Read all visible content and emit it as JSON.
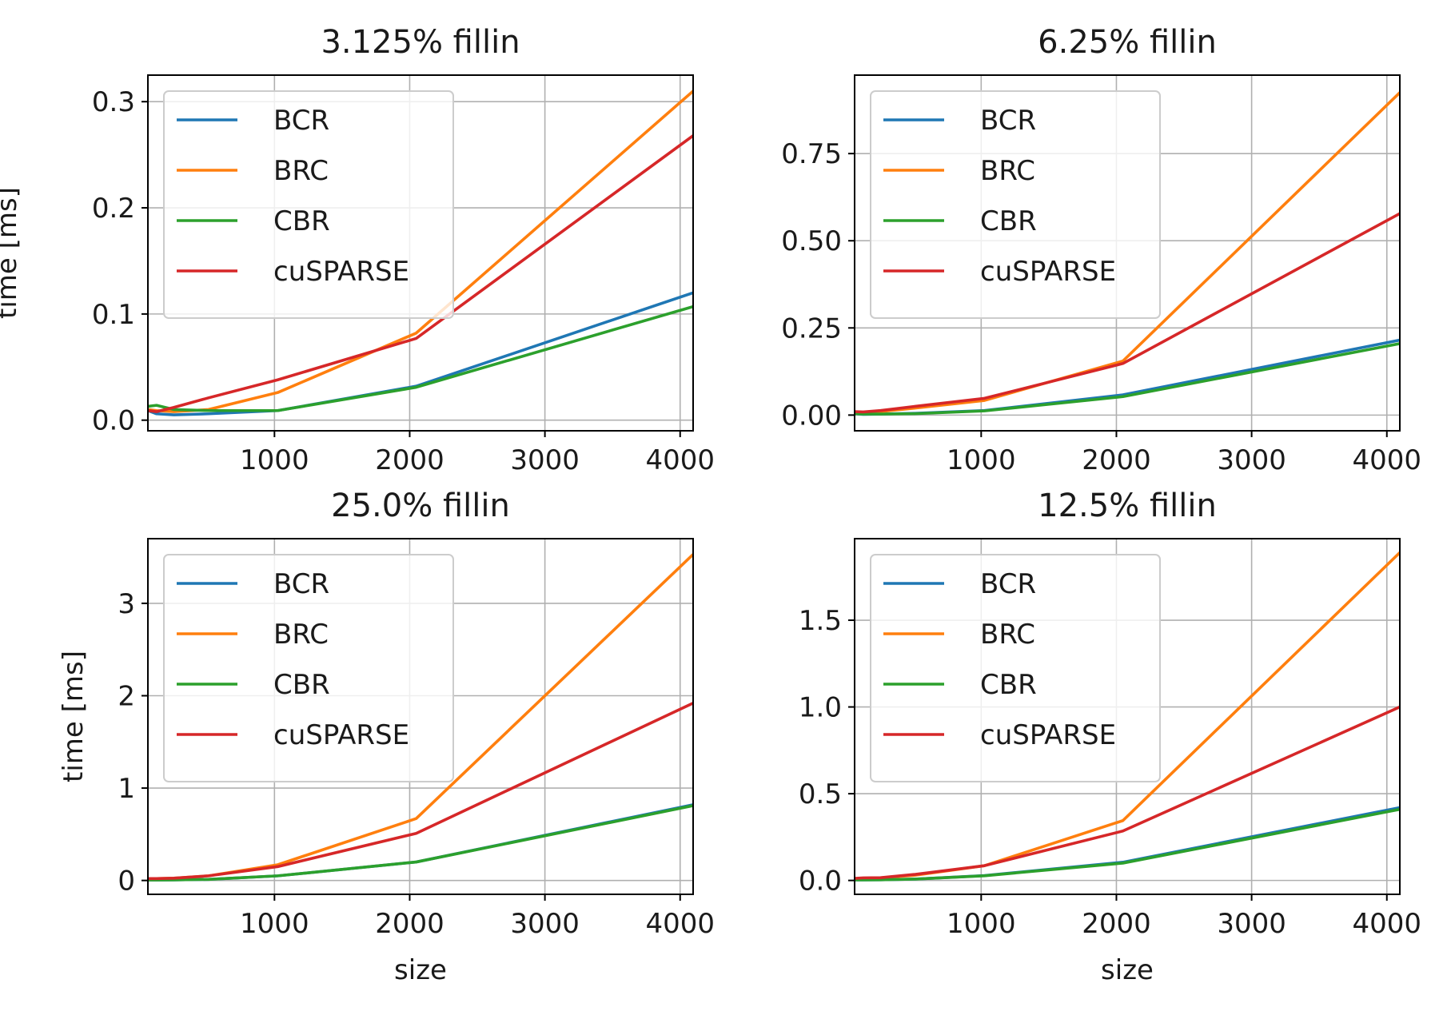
{
  "chart_data": [
    {
      "type": "line",
      "title": "3.125% fillin",
      "xlabel": "",
      "ylabel": "time [ms]",
      "xlim": [
        64,
        4096
      ],
      "ylim": [
        -0.01,
        0.325
      ],
      "xticks": [
        1000,
        2000,
        3000,
        4000
      ],
      "yticks": [
        0.0,
        0.1,
        0.2,
        0.3
      ],
      "ytick_labels": [
        "0.0",
        "0.1",
        "0.2",
        "0.3"
      ],
      "grid": true,
      "legend_position": "upper-left",
      "x": [
        64,
        128,
        256,
        512,
        1024,
        2048,
        4096
      ],
      "series": [
        {
          "name": "BCR",
          "color": "#1f77b4",
          "values": [
            0.009,
            0.006,
            0.005,
            0.006,
            0.009,
            0.032,
            0.12
          ]
        },
        {
          "name": "BRC",
          "color": "#ff7f0e",
          "values": [
            0.01,
            0.009,
            0.008,
            0.01,
            0.026,
            0.082,
            0.31
          ]
        },
        {
          "name": "CBR",
          "color": "#2ca02c",
          "values": [
            0.013,
            0.014,
            0.01,
            0.009,
            0.009,
            0.031,
            0.107
          ]
        },
        {
          "name": "cuSPARSE",
          "color": "#d62728",
          "values": [
            0.009,
            0.008,
            0.012,
            0.021,
            0.038,
            0.077,
            0.268
          ]
        }
      ]
    },
    {
      "type": "line",
      "title": "6.25% fillin",
      "xlabel": "",
      "ylabel": "",
      "xlim": [
        64,
        4096
      ],
      "ylim": [
        -0.045,
        0.975
      ],
      "xticks": [
        1000,
        2000,
        3000,
        4000
      ],
      "yticks": [
        0.0,
        0.25,
        0.5,
        0.75
      ],
      "ytick_labels": [
        "0.00",
        "0.25",
        "0.50",
        "0.75"
      ],
      "grid": true,
      "legend_position": "upper-left",
      "x": [
        64,
        128,
        256,
        512,
        1024,
        2048,
        4096
      ],
      "series": [
        {
          "name": "BCR",
          "color": "#1f77b4",
          "values": [
            0.004,
            0.002,
            0.003,
            0.005,
            0.013,
            0.058,
            0.215
          ]
        },
        {
          "name": "BRC",
          "color": "#ff7f0e",
          "values": [
            0.008,
            0.008,
            0.01,
            0.02,
            0.042,
            0.155,
            0.925
          ]
        },
        {
          "name": "CBR",
          "color": "#2ca02c",
          "values": [
            0.004,
            0.003,
            0.003,
            0.004,
            0.012,
            0.053,
            0.205
          ]
        },
        {
          "name": "cuSPARSE",
          "color": "#d62728",
          "values": [
            0.01,
            0.009,
            0.013,
            0.025,
            0.048,
            0.148,
            0.578
          ]
        }
      ]
    },
    {
      "type": "line",
      "title": "25.0% fillin",
      "xlabel": "size",
      "ylabel": "time [ms]",
      "xlim": [
        64,
        4096
      ],
      "ylim": [
        -0.15,
        3.7
      ],
      "xticks": [
        1000,
        2000,
        3000,
        4000
      ],
      "yticks": [
        0,
        1,
        2,
        3
      ],
      "ytick_labels": [
        "0",
        "1",
        "2",
        "3"
      ],
      "grid": true,
      "legend_position": "upper-left",
      "x": [
        64,
        128,
        256,
        512,
        1024,
        2048,
        4096
      ],
      "series": [
        {
          "name": "BCR",
          "color": "#1f77b4",
          "values": [
            0.005,
            0.005,
            0.006,
            0.012,
            0.05,
            0.2,
            0.82
          ]
        },
        {
          "name": "BRC",
          "color": "#ff7f0e",
          "values": [
            0.02,
            0.02,
            0.025,
            0.05,
            0.17,
            0.67,
            3.53
          ]
        },
        {
          "name": "CBR",
          "color": "#2ca02c",
          "values": [
            0.005,
            0.005,
            0.006,
            0.012,
            0.05,
            0.2,
            0.81
          ]
        },
        {
          "name": "cuSPARSE",
          "color": "#d62728",
          "values": [
            0.02,
            0.02,
            0.025,
            0.05,
            0.15,
            0.51,
            1.92
          ]
        }
      ]
    },
    {
      "type": "line",
      "title": "12.5% fillin",
      "xlabel": "size",
      "ylabel": "",
      "xlim": [
        64,
        4096
      ],
      "ylim": [
        -0.08,
        1.97
      ],
      "xticks": [
        1000,
        2000,
        3000,
        4000
      ],
      "yticks": [
        0.0,
        0.5,
        1.0,
        1.5
      ],
      "ytick_labels": [
        "0.0",
        "0.5",
        "1.0",
        "1.5"
      ],
      "grid": true,
      "legend_position": "upper-left",
      "x": [
        64,
        128,
        256,
        512,
        1024,
        2048,
        4096
      ],
      "series": [
        {
          "name": "BCR",
          "color": "#1f77b4",
          "values": [
            0.003,
            0.003,
            0.004,
            0.008,
            0.028,
            0.105,
            0.42
          ]
        },
        {
          "name": "BRC",
          "color": "#ff7f0e",
          "values": [
            0.01,
            0.012,
            0.015,
            0.03,
            0.085,
            0.345,
            1.89
          ]
        },
        {
          "name": "CBR",
          "color": "#2ca02c",
          "values": [
            0.003,
            0.003,
            0.004,
            0.008,
            0.027,
            0.1,
            0.41
          ]
        },
        {
          "name": "cuSPARSE",
          "color": "#d62728",
          "values": [
            0.012,
            0.015,
            0.016,
            0.035,
            0.085,
            0.285,
            1.0
          ]
        }
      ]
    }
  ]
}
